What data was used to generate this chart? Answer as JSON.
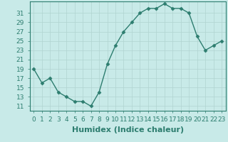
{
  "x": [
    0,
    1,
    2,
    3,
    4,
    5,
    6,
    7,
    8,
    9,
    10,
    11,
    12,
    13,
    14,
    15,
    16,
    17,
    18,
    19,
    20,
    21,
    22,
    23
  ],
  "y": [
    19,
    16,
    17,
    14,
    13,
    12,
    12,
    11,
    14,
    20,
    24,
    27,
    29,
    31,
    32,
    32,
    33,
    32,
    32,
    31,
    26,
    23,
    24,
    25
  ],
  "line_color": "#2d7d6f",
  "marker": "D",
  "marker_size": 2.5,
  "bg_color": "#c8eae8",
  "grid_color": "#b0d4d0",
  "xlabel": "Humidex (Indice chaleur)",
  "xlabel_fontsize": 8,
  "ylabel_ticks": [
    11,
    13,
    15,
    17,
    19,
    21,
    23,
    25,
    27,
    29,
    31
  ],
  "ylim": [
    10.0,
    33.5
  ],
  "xlim": [
    -0.5,
    23.5
  ],
  "xtick_labels": [
    "0",
    "1",
    "2",
    "3",
    "4",
    "5",
    "6",
    "7",
    "8",
    "9",
    "10",
    "11",
    "12",
    "13",
    "14",
    "15",
    "16",
    "17",
    "18",
    "19",
    "20",
    "21",
    "22",
    "23"
  ],
  "tick_fontsize": 6.5,
  "linewidth": 1.0
}
